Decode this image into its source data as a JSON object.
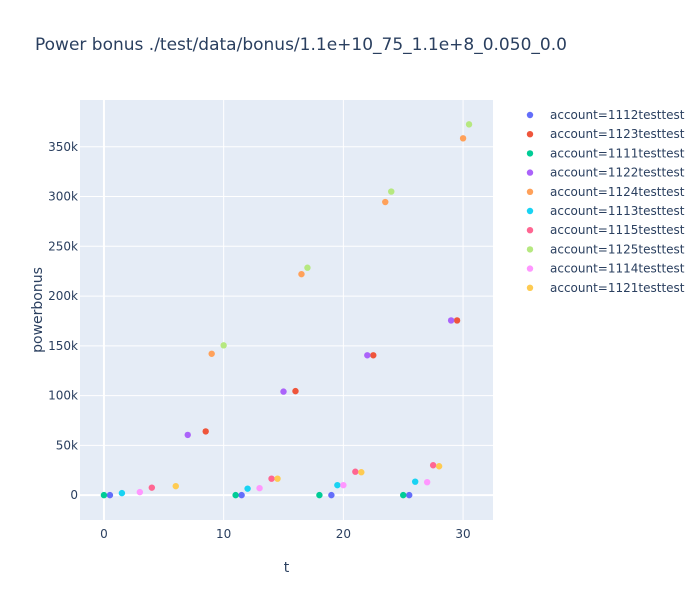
{
  "chart_data": {
    "type": "scatter",
    "title": "Power bonus ./test/data/bonus/1.1e+10_75_1.1e+8_0.050_0.0",
    "xlabel": "t",
    "ylabel": "powerbonus",
    "xlim": [
      -2,
      32.5
    ],
    "ylim": [
      -25000,
      397000
    ],
    "x_ticks": [
      0,
      10,
      20,
      30
    ],
    "y_ticks": [
      0,
      50000,
      100000,
      150000,
      200000,
      250000,
      300000,
      350000
    ],
    "y_tick_labels": [
      "0",
      "50k",
      "100k",
      "150k",
      "200k",
      "250k",
      "300k",
      "350k"
    ],
    "grid": true,
    "legend_position": "right",
    "series": [
      {
        "name": "account=1112testtest",
        "color": "#636efa",
        "x": [
          0.5,
          11.5,
          19.0,
          25.5
        ],
        "y": [
          0,
          0,
          0,
          0
        ]
      },
      {
        "name": "account=1123testtest",
        "color": "#EF553B",
        "x": [
          8.5,
          16.0,
          22.5,
          29.5
        ],
        "y": [
          64000,
          104500,
          140500,
          175500
        ]
      },
      {
        "name": "account=1111testtest",
        "color": "#00cc96",
        "x": [
          0.0,
          11.0,
          18.0,
          25.0
        ],
        "y": [
          0,
          0,
          0,
          0
        ]
      },
      {
        "name": "account=1122testtest",
        "color": "#ab63fa",
        "x": [
          7.0,
          15.0,
          22.0,
          29.0
        ],
        "y": [
          60500,
          104000,
          140500,
          175500
        ]
      },
      {
        "name": "account=1124testtest",
        "color": "#FFA15A",
        "x": [
          9.0,
          16.5,
          23.5,
          30.0
        ],
        "y": [
          142000,
          222000,
          294500,
          358500
        ]
      },
      {
        "name": "account=1113testtest",
        "color": "#19d3f3",
        "x": [
          1.5,
          12.0,
          19.5,
          26.0
        ],
        "y": [
          2000,
          6500,
          10000,
          13500
        ]
      },
      {
        "name": "account=1115testtest",
        "color": "#FF6692",
        "x": [
          4.0,
          14.0,
          21.0,
          27.5
        ],
        "y": [
          7500,
          16500,
          23500,
          30000
        ]
      },
      {
        "name": "account=1125testtest",
        "color": "#B6E880",
        "x": [
          10.0,
          17.0,
          24.0,
          30.5
        ],
        "y": [
          150500,
          228500,
          305000,
          372500
        ]
      },
      {
        "name": "account=1114testtest",
        "color": "#FF97FF",
        "x": [
          3.0,
          13.0,
          20.0,
          27.0
        ],
        "y": [
          3000,
          7000,
          10000,
          13000
        ]
      },
      {
        "name": "account=1121testtest",
        "color": "#FECB52",
        "x": [
          6.0,
          14.5,
          21.5,
          28.0
        ],
        "y": [
          9000,
          16500,
          23000,
          29000
        ]
      }
    ]
  }
}
